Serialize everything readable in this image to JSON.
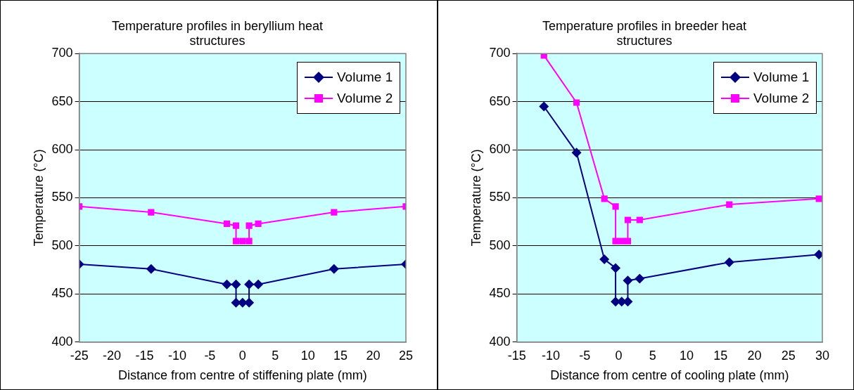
{
  "chart_data": [
    {
      "type": "line",
      "title": "Temperature profiles in beryllium heat structures",
      "xlabel": "Distance from centre of stiffening plate (mm)",
      "ylabel": "Temperature (°C)",
      "xlim": [
        -25,
        25
      ],
      "xticks": [
        -25,
        -20,
        -15,
        -10,
        -5,
        0,
        5,
        10,
        15,
        20,
        25
      ],
      "ylim": [
        400,
        700
      ],
      "yticks": [
        400,
        450,
        500,
        550,
        600,
        650,
        700
      ],
      "grid": "y",
      "legend": "top right",
      "series": [
        {
          "name": "Volume 1",
          "color": "#000080",
          "marker": "diamond",
          "x": [
            -25,
            -14,
            -2.4,
            -1,
            -1,
            0,
            1,
            1,
            2.4,
            14,
            25
          ],
          "values": [
            481,
            476,
            460,
            460,
            441,
            441,
            441,
            460,
            460,
            476,
            481
          ]
        },
        {
          "name": "Volume 2",
          "color": "#ff00ff",
          "marker": "square",
          "x": [
            -25,
            -14,
            -2.4,
            -1,
            -1,
            0,
            1,
            1,
            2.4,
            14,
            25
          ],
          "values": [
            541,
            535,
            523,
            521,
            505,
            505,
            505,
            521,
            523,
            535,
            541
          ]
        }
      ]
    },
    {
      "type": "line",
      "title": "Temperature profiles in breeder heat structures",
      "xlabel": "Distance from centre of cooling plate (mm)",
      "ylabel": "Temperature (°C)",
      "xlim": [
        -15,
        30
      ],
      "xticks": [
        -15,
        -10,
        -5,
        0,
        5,
        10,
        15,
        20,
        25,
        30
      ],
      "ylim": [
        400,
        700
      ],
      "yticks": [
        400,
        450,
        500,
        550,
        600,
        650,
        700
      ],
      "grid": "y",
      "legend": "top right",
      "series": [
        {
          "name": "Volume 1",
          "color": "#000080",
          "marker": "diamond",
          "x": [
            -11,
            -6.2,
            -2.1,
            -0.45,
            -0.45,
            0.45,
            1.35,
            1.35,
            3.1,
            16.3,
            29.5
          ],
          "values": [
            645,
            597,
            486,
            477,
            442,
            442,
            442,
            464,
            466,
            483,
            491
          ]
        },
        {
          "name": "Volume 2",
          "color": "#ff00ff",
          "marker": "square",
          "x": [
            -11,
            -6.2,
            -2.1,
            -0.45,
            -0.45,
            0.45,
            1.35,
            1.35,
            3.1,
            16.3,
            29.5
          ],
          "values": [
            698,
            649,
            549,
            541,
            505,
            505,
            505,
            527,
            527,
            543,
            549
          ]
        }
      ]
    }
  ]
}
